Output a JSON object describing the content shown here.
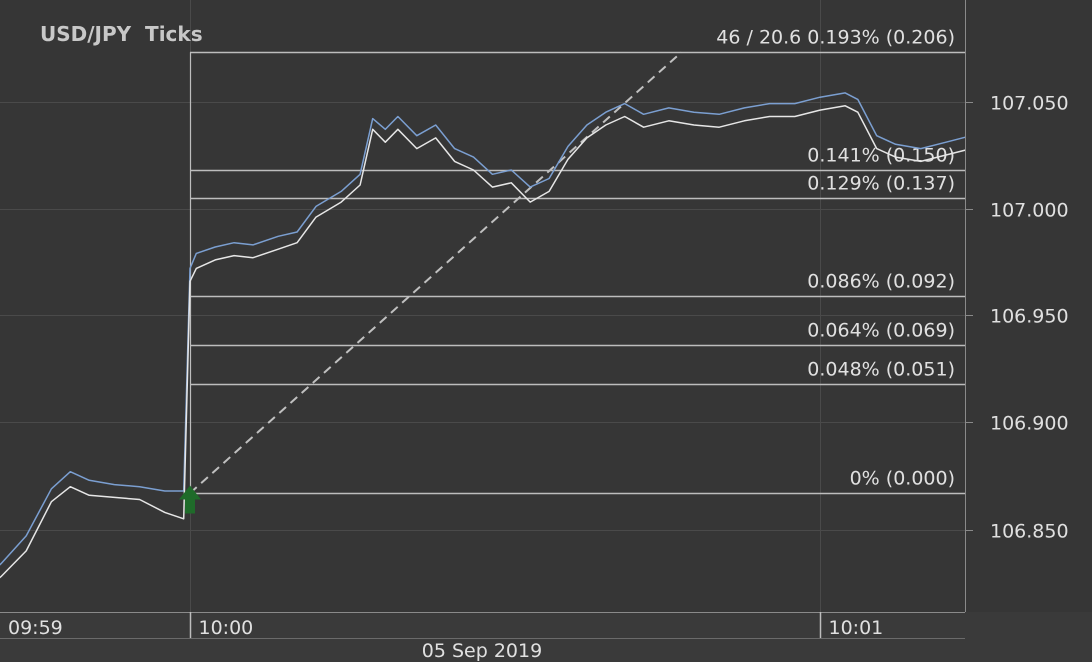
{
  "chart_data": {
    "type": "line",
    "title": "USD/JPY  Ticks",
    "y_axis": {
      "ticks": [
        106.85,
        106.9,
        106.95,
        107.0,
        107.05
      ],
      "tick_labels": [
        "106.850",
        "106.900",
        "106.950",
        "107.000",
        "107.050"
      ],
      "range": [
        106.81,
        107.09
      ]
    },
    "x_axis": {
      "time_labels": [
        "09:59",
        "10:00",
        "10:01"
      ],
      "date_label": "05 Sep 2019",
      "grid": true
    },
    "fib_levels": [
      {
        "price": 107.073,
        "label": "46 / 20.6  0.193% (0.206)"
      },
      {
        "price": 107.018,
        "label": "0.141% (0.150)"
      },
      {
        "price": 107.005,
        "label": "0.129% (0.137)"
      },
      {
        "price": 106.959,
        "label": "0.086% (0.092)"
      },
      {
        "price": 106.936,
        "label": "0.064% (0.069)"
      },
      {
        "price": 106.918,
        "label": "0.048% (0.051)"
      },
      {
        "price": 106.867,
        "label": "0% (0.000)"
      }
    ],
    "trend_line": {
      "from": {
        "t": 1.0,
        "price": 106.867
      },
      "to": {
        "t": 1.78,
        "price": 107.073
      },
      "style": "dashed"
    },
    "arrow_marker": {
      "t": 1.0,
      "price": 106.864,
      "color": "#1f6b2a"
    },
    "series": [
      {
        "name": "Ask",
        "color": "#7b9fd1",
        "points": [
          [
            0.0,
            106.839
          ],
          [
            0.05,
            106.84
          ],
          [
            0.08,
            106.839
          ],
          [
            0.11,
            106.837
          ],
          [
            0.14,
            106.838
          ],
          [
            0.18,
            106.837
          ],
          [
            0.22,
            106.836
          ],
          [
            0.26,
            106.833
          ],
          [
            0.3,
            106.831
          ],
          [
            0.35,
            106.829
          ],
          [
            0.4,
            106.827
          ],
          [
            0.45,
            106.822
          ],
          [
            0.5,
            106.82
          ],
          [
            0.55,
            106.822
          ],
          [
            0.6,
            106.823
          ],
          [
            0.66,
            106.823
          ],
          [
            0.7,
            106.834
          ],
          [
            0.74,
            106.847
          ],
          [
            0.78,
            106.869
          ],
          [
            0.81,
            106.877
          ],
          [
            0.84,
            106.873
          ],
          [
            0.88,
            106.871
          ],
          [
            0.92,
            106.87
          ],
          [
            0.96,
            106.868
          ],
          [
            0.99,
            106.868
          ],
          [
            1.0,
            106.972
          ],
          [
            1.01,
            106.979
          ],
          [
            1.04,
            106.982
          ],
          [
            1.07,
            106.984
          ],
          [
            1.1,
            106.983
          ],
          [
            1.14,
            106.987
          ],
          [
            1.17,
            106.989
          ],
          [
            1.2,
            107.001
          ],
          [
            1.24,
            107.008
          ],
          [
            1.27,
            107.016
          ],
          [
            1.29,
            107.042
          ],
          [
            1.31,
            107.037
          ],
          [
            1.33,
            107.043
          ],
          [
            1.36,
            107.034
          ],
          [
            1.39,
            107.039
          ],
          [
            1.42,
            107.028
          ],
          [
            1.45,
            107.024
          ],
          [
            1.48,
            107.016
          ],
          [
            1.51,
            107.018
          ],
          [
            1.54,
            107.01
          ],
          [
            1.57,
            107.014
          ],
          [
            1.6,
            107.029
          ],
          [
            1.63,
            107.039
          ],
          [
            1.66,
            107.045
          ],
          [
            1.69,
            107.049
          ],
          [
            1.72,
            107.044
          ],
          [
            1.76,
            107.047
          ],
          [
            1.8,
            107.045
          ],
          [
            1.84,
            107.044
          ],
          [
            1.88,
            107.047
          ],
          [
            1.92,
            107.049
          ],
          [
            1.96,
            107.049
          ],
          [
            2.0,
            107.052
          ],
          [
            2.04,
            107.054
          ],
          [
            2.06,
            107.051
          ],
          [
            2.09,
            107.034
          ],
          [
            2.12,
            107.03
          ],
          [
            2.16,
            107.028
          ],
          [
            2.2,
            107.031
          ],
          [
            2.24,
            107.034
          ],
          [
            2.28,
            107.04
          ],
          [
            2.32,
            107.045
          ],
          [
            2.36,
            107.05
          ],
          [
            2.4,
            107.053
          ],
          [
            2.44,
            107.056
          ],
          [
            2.48,
            107.06
          ],
          [
            2.52,
            107.062
          ],
          [
            2.56,
            107.064
          ],
          [
            2.6,
            107.066
          ],
          [
            2.64,
            107.068
          ],
          [
            2.68,
            107.07
          ],
          [
            2.72,
            107.074
          ],
          [
            2.76,
            107.078
          ],
          [
            2.8,
            107.082
          ],
          [
            2.84,
            107.085
          ],
          [
            2.88,
            107.084
          ],
          [
            2.92,
            107.082
          ],
          [
            2.96,
            107.08
          ],
          [
            3.0,
            107.078
          ],
          [
            3.04,
            107.073
          ],
          [
            3.06,
            107.067
          ],
          [
            3.09,
            107.06
          ],
          [
            3.12,
            107.05
          ],
          [
            3.15,
            107.053
          ],
          [
            3.18,
            107.049
          ],
          [
            3.21,
            107.036
          ],
          [
            3.24,
            107.041
          ],
          [
            3.27,
            107.047
          ],
          [
            3.3,
            107.05
          ],
          [
            3.33,
            107.058
          ],
          [
            3.36,
            107.047
          ],
          [
            3.4,
            107.044
          ],
          [
            3.44,
            107.04
          ],
          [
            3.48,
            107.05
          ],
          [
            3.52,
            107.055
          ],
          [
            3.56,
            107.056
          ],
          [
            3.6,
            107.063
          ],
          [
            3.64,
            107.057
          ],
          [
            3.68,
            107.056
          ],
          [
            3.72,
            107.054
          ],
          [
            3.76,
            107.049
          ],
          [
            3.8,
            107.045
          ],
          [
            3.84,
            107.052
          ],
          [
            3.88,
            107.055
          ],
          [
            3.92,
            107.055
          ],
          [
            3.96,
            107.057
          ],
          [
            4.0,
            107.054
          ],
          [
            4.04,
            107.055
          ],
          [
            4.08,
            107.054
          ],
          [
            4.12,
            107.055
          ],
          [
            4.16,
            107.054
          ],
          [
            4.2,
            107.055
          ],
          [
            4.24,
            107.054
          ],
          [
            4.26,
            107.056
          ],
          [
            4.28,
            107.058
          ],
          [
            4.3,
            107.066
          ],
          [
            4.32,
            107.061
          ]
        ]
      },
      {
        "name": "Bid",
        "color": "#e6e6e6",
        "points": [
          [
            0.0,
            106.834
          ],
          [
            0.05,
            106.836
          ],
          [
            0.08,
            106.834
          ],
          [
            0.11,
            106.832
          ],
          [
            0.14,
            106.832
          ],
          [
            0.18,
            106.831
          ],
          [
            0.22,
            106.829
          ],
          [
            0.26,
            106.825
          ],
          [
            0.3,
            106.821
          ],
          [
            0.35,
            106.819
          ],
          [
            0.4,
            106.817
          ],
          [
            0.45,
            106.814
          ],
          [
            0.5,
            106.816
          ],
          [
            0.55,
            106.818
          ],
          [
            0.6,
            106.818
          ],
          [
            0.66,
            106.818
          ],
          [
            0.7,
            106.828
          ],
          [
            0.74,
            106.84
          ],
          [
            0.78,
            106.863
          ],
          [
            0.81,
            106.87
          ],
          [
            0.84,
            106.866
          ],
          [
            0.88,
            106.865
          ],
          [
            0.92,
            106.864
          ],
          [
            0.96,
            106.858
          ],
          [
            0.99,
            106.855
          ],
          [
            1.0,
            106.966
          ],
          [
            1.01,
            106.972
          ],
          [
            1.04,
            106.976
          ],
          [
            1.07,
            106.978
          ],
          [
            1.1,
            106.977
          ],
          [
            1.14,
            106.981
          ],
          [
            1.17,
            106.984
          ],
          [
            1.2,
            106.996
          ],
          [
            1.24,
            107.003
          ],
          [
            1.27,
            107.011
          ],
          [
            1.29,
            107.037
          ],
          [
            1.31,
            107.031
          ],
          [
            1.33,
            107.037
          ],
          [
            1.36,
            107.028
          ],
          [
            1.39,
            107.033
          ],
          [
            1.42,
            107.022
          ],
          [
            1.45,
            107.018
          ],
          [
            1.48,
            107.01
          ],
          [
            1.51,
            107.012
          ],
          [
            1.54,
            107.003
          ],
          [
            1.57,
            107.008
          ],
          [
            1.6,
            107.023
          ],
          [
            1.63,
            107.033
          ],
          [
            1.66,
            107.039
          ],
          [
            1.69,
            107.043
          ],
          [
            1.72,
            107.038
          ],
          [
            1.76,
            107.041
          ],
          [
            1.8,
            107.039
          ],
          [
            1.84,
            107.038
          ],
          [
            1.88,
            107.041
          ],
          [
            1.92,
            107.043
          ],
          [
            1.96,
            107.043
          ],
          [
            2.0,
            107.046
          ],
          [
            2.04,
            107.048
          ],
          [
            2.06,
            107.045
          ],
          [
            2.09,
            107.028
          ],
          [
            2.12,
            107.024
          ],
          [
            2.16,
            107.022
          ],
          [
            2.2,
            107.025
          ],
          [
            2.24,
            107.028
          ],
          [
            2.28,
            107.034
          ],
          [
            2.32,
            107.039
          ],
          [
            2.36,
            107.044
          ],
          [
            2.4,
            107.047
          ],
          [
            2.44,
            107.05
          ],
          [
            2.48,
            107.054
          ],
          [
            2.52,
            107.056
          ],
          [
            2.56,
            107.058
          ],
          [
            2.6,
            107.06
          ],
          [
            2.64,
            107.062
          ],
          [
            2.68,
            107.064
          ],
          [
            2.72,
            107.068
          ],
          [
            2.76,
            107.072
          ],
          [
            2.8,
            107.076
          ],
          [
            2.84,
            107.079
          ],
          [
            2.88,
            107.078
          ],
          [
            2.92,
            107.076
          ],
          [
            2.96,
            107.074
          ],
          [
            3.0,
            107.072
          ],
          [
            3.04,
            107.068
          ],
          [
            3.06,
            107.061
          ],
          [
            3.09,
            107.054
          ],
          [
            3.12,
            107.044
          ],
          [
            3.15,
            107.047
          ],
          [
            3.18,
            107.043
          ],
          [
            3.21,
            107.028
          ],
          [
            3.24,
            107.035
          ],
          [
            3.27,
            107.041
          ],
          [
            3.3,
            107.044
          ],
          [
            3.33,
            107.052
          ],
          [
            3.36,
            107.041
          ],
          [
            3.4,
            107.038
          ],
          [
            3.44,
            107.034
          ],
          [
            3.48,
            107.044
          ],
          [
            3.52,
            107.049
          ],
          [
            3.56,
            107.05
          ],
          [
            3.6,
            107.057
          ],
          [
            3.64,
            107.051
          ],
          [
            3.68,
            107.05
          ],
          [
            3.72,
            107.048
          ],
          [
            3.76,
            107.043
          ],
          [
            3.8,
            107.039
          ],
          [
            3.84,
            107.046
          ],
          [
            3.88,
            107.049
          ],
          [
            3.92,
            107.049
          ],
          [
            3.96,
            107.051
          ],
          [
            4.0,
            107.048
          ],
          [
            4.04,
            107.049
          ],
          [
            4.08,
            107.048
          ],
          [
            4.12,
            107.049
          ],
          [
            4.16,
            107.048
          ],
          [
            4.2,
            107.049
          ],
          [
            4.24,
            107.048
          ],
          [
            4.26,
            107.05
          ],
          [
            4.28,
            107.052
          ],
          [
            4.3,
            107.06
          ],
          [
            4.32,
            107.055
          ]
        ]
      }
    ],
    "colors": {
      "background": "#363636",
      "grid": "#4a4a4a",
      "level_line": "#bdbdbd",
      "text": "#e0e0e0",
      "title": "#c8c8c8",
      "trend": "#c0c0c0"
    }
  }
}
